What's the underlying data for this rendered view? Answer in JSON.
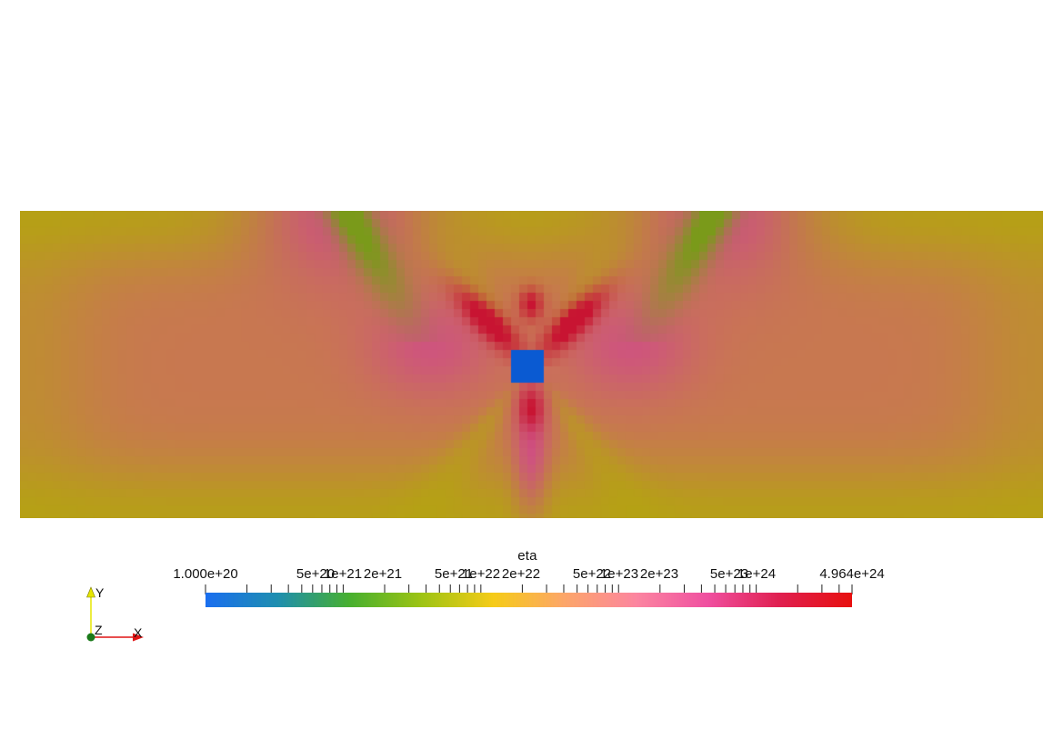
{
  "viewport": {
    "background": "#ffffff"
  },
  "field": {
    "variable": "eta",
    "colormap": [
      "#1a6ff0",
      "#1f8fb0",
      "#48b030",
      "#9ec414",
      "#f6cc18",
      "#fda66a",
      "#fc86a0",
      "#f050a0",
      "#e02050",
      "#e81010"
    ],
    "mesh_colors": {
      "far_field": "#c87850",
      "near_top": "#b4a410",
      "arms": "#d04c88",
      "core_red": "#c81432",
      "inclusion": "#0a5ad2",
      "green_arms": "#7a9a1a"
    }
  },
  "colorbar": {
    "title": "eta",
    "min_label": "1.000e+20",
    "max_label": "4.964e+24",
    "tick_labels": [
      "5e+20",
      "1e+21",
      "2e+21",
      "5e+21",
      "1e+22",
      "2e+22",
      "5e+22",
      "1e+23",
      "2e+23",
      "5e+23",
      "1e+24"
    ],
    "range": [
      1e+20,
      4.964e+24
    ],
    "scale": "log"
  },
  "orientation_axes": {
    "x_label": "X",
    "y_label": "Y",
    "z_label": "Z",
    "x_color": "#e01414",
    "y_color": "#e6e600",
    "z_color": "#1a7a1a"
  }
}
